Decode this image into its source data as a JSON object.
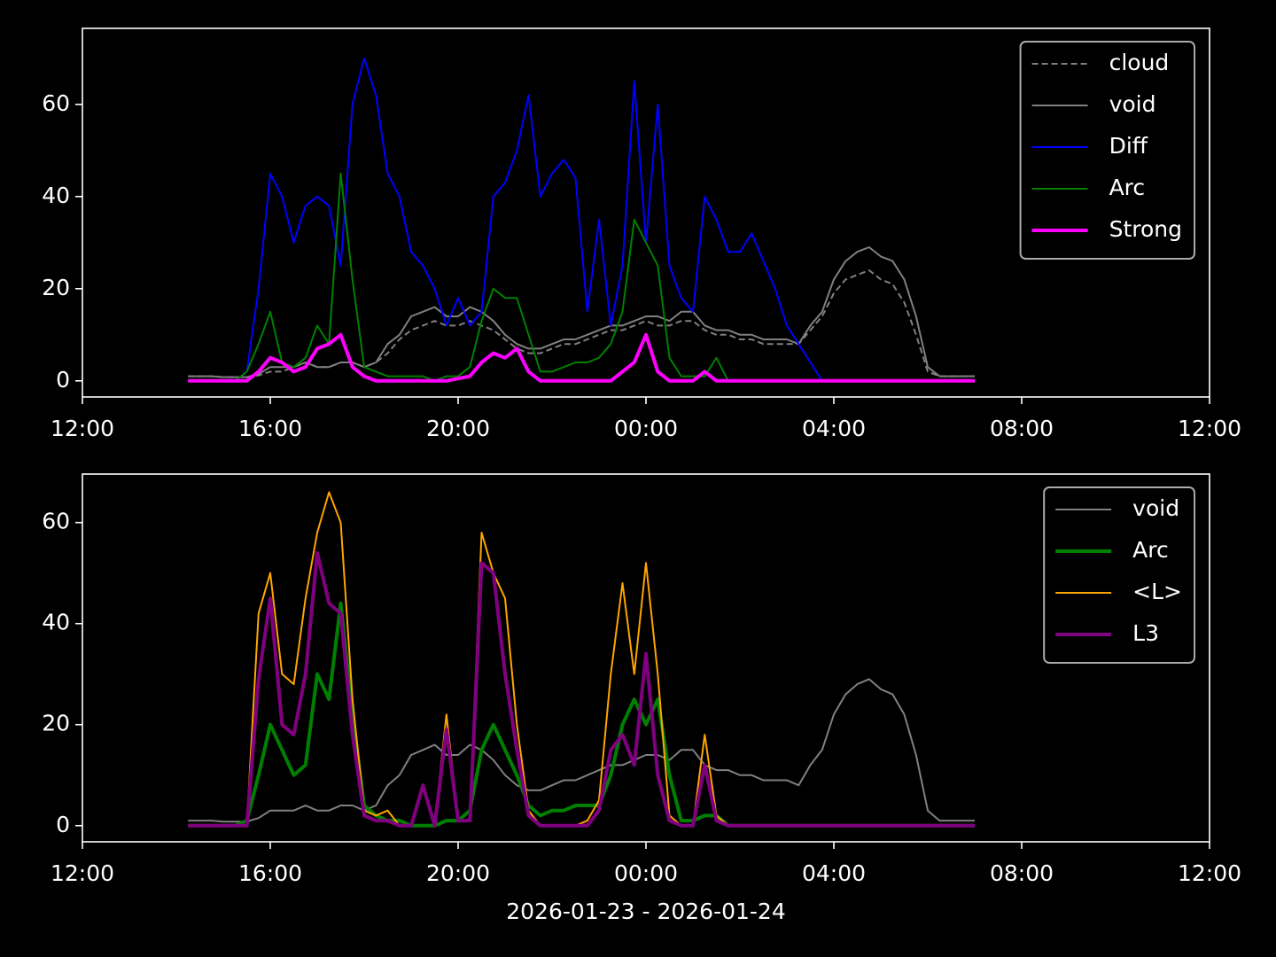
{
  "chart_data": [
    {
      "type": "line",
      "legend": "upper right",
      "x": [
        "14:15",
        "14:30",
        "14:45",
        "15:00",
        "15:15",
        "15:30",
        "15:45",
        "16:00",
        "16:15",
        "16:30",
        "16:45",
        "17:00",
        "17:15",
        "17:30",
        "17:45",
        "18:00",
        "18:15",
        "18:30",
        "18:45",
        "19:00",
        "19:15",
        "19:30",
        "19:45",
        "20:00",
        "20:15",
        "20:30",
        "20:45",
        "21:00",
        "21:15",
        "21:30",
        "21:45",
        "22:00",
        "22:15",
        "22:30",
        "22:45",
        "23:00",
        "23:15",
        "23:30",
        "23:45",
        "00:00",
        "00:15",
        "00:30",
        "00:45",
        "01:00",
        "01:15",
        "01:30",
        "01:45",
        "02:00",
        "02:15",
        "02:30",
        "02:45",
        "03:00",
        "03:15",
        "03:30",
        "03:45",
        "04:00",
        "04:15",
        "04:30",
        "04:45",
        "05:00",
        "05:15",
        "05:30",
        "05:45",
        "06:00",
        "06:15",
        "06:30",
        "06:45",
        "07:00"
      ],
      "xlim": [
        "12:00",
        "12:00"
      ],
      "xticks": [
        "12:00",
        "16:00",
        "20:00",
        "00:00",
        "04:00",
        "08:00",
        "12:00"
      ],
      "ylim": [
        -3.5,
        76.5
      ],
      "yticks": [
        0,
        20,
        40,
        60
      ],
      "series": [
        {
          "name": "cloud",
          "color": "#808080",
          "linewidth": 1,
          "linestyle": "dashed",
          "values": [
            1,
            1,
            1,
            0.8,
            0.8,
            0.8,
            1.2,
            2,
            2,
            3,
            4,
            3,
            3,
            4,
            4,
            3,
            4,
            6,
            9,
            11,
            12,
            13,
            12,
            12,
            13,
            12,
            11,
            9,
            7,
            6,
            6,
            7,
            8,
            8,
            9,
            10,
            11,
            11,
            12,
            13,
            12,
            12,
            13,
            13,
            11,
            10,
            10,
            9,
            9,
            8,
            8,
            8,
            8,
            11,
            14,
            19,
            22,
            23,
            24,
            22,
            21,
            17,
            10,
            2,
            1,
            1,
            1,
            1
          ]
        },
        {
          "name": "void",
          "color": "#808080",
          "linewidth": 1,
          "linestyle": "solid",
          "values": [
            1,
            1,
            1,
            0.8,
            0.8,
            0.8,
            1.5,
            3,
            3,
            3,
            4,
            3,
            3,
            4,
            4,
            3,
            4,
            8,
            10,
            14,
            15,
            16,
            14,
            14,
            16,
            15,
            13,
            10,
            8,
            7,
            7,
            8,
            9,
            9,
            10,
            11,
            12,
            12,
            13,
            14,
            14,
            13,
            15,
            15,
            12,
            11,
            11,
            10,
            10,
            9,
            9,
            9,
            8,
            12,
            15,
            22,
            26,
            28,
            29,
            27,
            26,
            22,
            14,
            3,
            1,
            1,
            1,
            1
          ]
        },
        {
          "name": "Diff",
          "color": "#0000ff",
          "linewidth": 1,
          "linestyle": "solid",
          "values": [
            0,
            0,
            0,
            0,
            0,
            2,
            20,
            45,
            40,
            30,
            38,
            40,
            38,
            25,
            60,
            70,
            62,
            45,
            40,
            28,
            25,
            20,
            12,
            18,
            12,
            15,
            40,
            43,
            50,
            62,
            40,
            45,
            48,
            44,
            15,
            35,
            12,
            25,
            65,
            30,
            60,
            25,
            18,
            15,
            40,
            35,
            28,
            28,
            32,
            26,
            20,
            12,
            8,
            4,
            0,
            0,
            0,
            0,
            0,
            0,
            0,
            0,
            0,
            0,
            0,
            0,
            0,
            0
          ]
        },
        {
          "name": "Arc",
          "color": "#008000",
          "linewidth": 1,
          "linestyle": "solid",
          "values": [
            0,
            0,
            0,
            0,
            0,
            2,
            8,
            15,
            4,
            3,
            5,
            12,
            8,
            45,
            22,
            3,
            2,
            1,
            1,
            1,
            1,
            0,
            1,
            1,
            3,
            13,
            20,
            18,
            18,
            10,
            2,
            2,
            3,
            4,
            4,
            5,
            8,
            15,
            35,
            30,
            25,
            5,
            1,
            1,
            1,
            5,
            0,
            0,
            0,
            0,
            0,
            0,
            0,
            0,
            0,
            0,
            0,
            0,
            0,
            0,
            0,
            0,
            0,
            0,
            0,
            0,
            0,
            0
          ]
        },
        {
          "name": "Strong",
          "color": "#ff00ff",
          "linewidth": 2,
          "linestyle": "solid",
          "values": [
            0,
            0,
            0,
            0,
            0,
            0,
            2,
            5,
            4,
            2,
            3,
            7,
            8,
            10,
            3,
            1,
            0,
            0,
            0,
            0,
            0,
            0,
            0,
            0.5,
            1,
            4,
            6,
            5,
            7,
            2,
            0,
            0,
            0,
            0,
            0,
            0,
            0,
            2,
            4,
            10,
            2,
            0,
            0,
            0,
            2,
            0,
            0,
            0,
            0,
            0,
            0,
            0,
            0,
            0,
            0,
            0,
            0,
            0,
            0,
            0,
            0,
            0,
            0,
            0,
            0,
            0,
            0,
            0
          ]
        }
      ]
    },
    {
      "type": "line",
      "legend": "upper right",
      "xlabel": "2026-01-23 - 2026-01-24",
      "x": [
        "14:15",
        "14:30",
        "14:45",
        "15:00",
        "15:15",
        "15:30",
        "15:45",
        "16:00",
        "16:15",
        "16:30",
        "16:45",
        "17:00",
        "17:15",
        "17:30",
        "17:45",
        "18:00",
        "18:15",
        "18:30",
        "18:45",
        "19:00",
        "19:15",
        "19:30",
        "19:45",
        "20:00",
        "20:15",
        "20:30",
        "20:45",
        "21:00",
        "21:15",
        "21:30",
        "21:45",
        "22:00",
        "22:15",
        "22:30",
        "22:45",
        "23:00",
        "23:15",
        "23:30",
        "23:45",
        "00:00",
        "00:15",
        "00:30",
        "00:45",
        "01:00",
        "01:15",
        "01:30",
        "01:45",
        "02:00",
        "02:15",
        "02:30",
        "02:45",
        "03:00",
        "03:15",
        "03:30",
        "03:45",
        "04:00",
        "04:15",
        "04:30",
        "04:45",
        "05:00",
        "05:15",
        "05:30",
        "05:45",
        "06:00",
        "06:15",
        "06:30",
        "06:45",
        "07:00"
      ],
      "xlim": [
        "12:00",
        "12:00"
      ],
      "xticks": [
        "12:00",
        "16:00",
        "20:00",
        "00:00",
        "04:00",
        "08:00",
        "12:00"
      ],
      "ylim": [
        -3.2,
        69.6
      ],
      "yticks": [
        0,
        20,
        40,
        60
      ],
      "series": [
        {
          "name": "void",
          "color": "#808080",
          "linewidth": 1,
          "linestyle": "solid",
          "values": [
            1,
            1,
            1,
            0.8,
            0.8,
            0.8,
            1.5,
            3,
            3,
            3,
            4,
            3,
            3,
            4,
            4,
            3,
            4,
            8,
            10,
            14,
            15,
            16,
            14,
            14,
            16,
            15,
            13,
            10,
            8,
            7,
            7,
            8,
            9,
            9,
            10,
            11,
            12,
            12,
            13,
            14,
            14,
            13,
            15,
            15,
            12,
            11,
            11,
            10,
            10,
            9,
            9,
            9,
            8,
            12,
            15,
            22,
            26,
            28,
            29,
            27,
            26,
            22,
            14,
            3,
            1,
            1,
            1,
            1
          ]
        },
        {
          "name": "Arc",
          "color": "#008000",
          "linewidth": 2,
          "linestyle": "solid",
          "values": [
            0,
            0,
            0,
            0,
            0,
            1,
            10,
            20,
            15,
            10,
            12,
            30,
            25,
            44,
            22,
            4,
            2,
            1,
            1,
            0,
            0,
            0,
            1,
            1,
            3,
            15,
            20,
            15,
            10,
            4,
            2,
            3,
            3,
            4,
            4,
            4,
            10,
            20,
            25,
            20,
            25,
            10,
            1,
            1,
            2,
            2,
            0,
            0,
            0,
            0,
            0,
            0,
            0,
            0,
            0,
            0,
            0,
            0,
            0,
            0,
            0,
            0,
            0,
            0,
            0,
            0,
            0,
            0
          ]
        },
        {
          "name": "<L>",
          "color": "#ffa500",
          "linewidth": 1,
          "linestyle": "solid",
          "values": [
            0,
            0,
            0,
            0,
            0,
            0,
            42,
            50,
            30,
            28,
            45,
            58,
            66,
            60,
            25,
            3,
            2,
            3,
            0,
            0,
            8,
            0,
            22,
            1,
            1,
            58,
            50,
            45,
            20,
            3,
            0,
            0,
            0,
            0,
            1,
            5,
            30,
            48,
            30,
            52,
            30,
            2,
            0,
            0,
            18,
            2,
            0,
            0,
            0,
            0,
            0,
            0,
            0,
            0,
            0,
            0,
            0,
            0,
            0,
            0,
            0,
            0,
            0,
            0,
            0,
            0,
            0,
            0
          ]
        },
        {
          "name": "L3",
          "color": "#800080",
          "linewidth": 2,
          "linestyle": "solid",
          "values": [
            0,
            0,
            0,
            0,
            0,
            0,
            29,
            45,
            20,
            18,
            30,
            54,
            44,
            42,
            18,
            2,
            1,
            1,
            0,
            0,
            8,
            0,
            19,
            1,
            1,
            52,
            50,
            30,
            15,
            2,
            0,
            0,
            0,
            0,
            0,
            3,
            15,
            18,
            12,
            34,
            10,
            1,
            0,
            0,
            12,
            1,
            0,
            0,
            0,
            0,
            0,
            0,
            0,
            0,
            0,
            0,
            0,
            0,
            0,
            0,
            0,
            0,
            0,
            0,
            0,
            0,
            0,
            0
          ]
        }
      ]
    }
  ]
}
